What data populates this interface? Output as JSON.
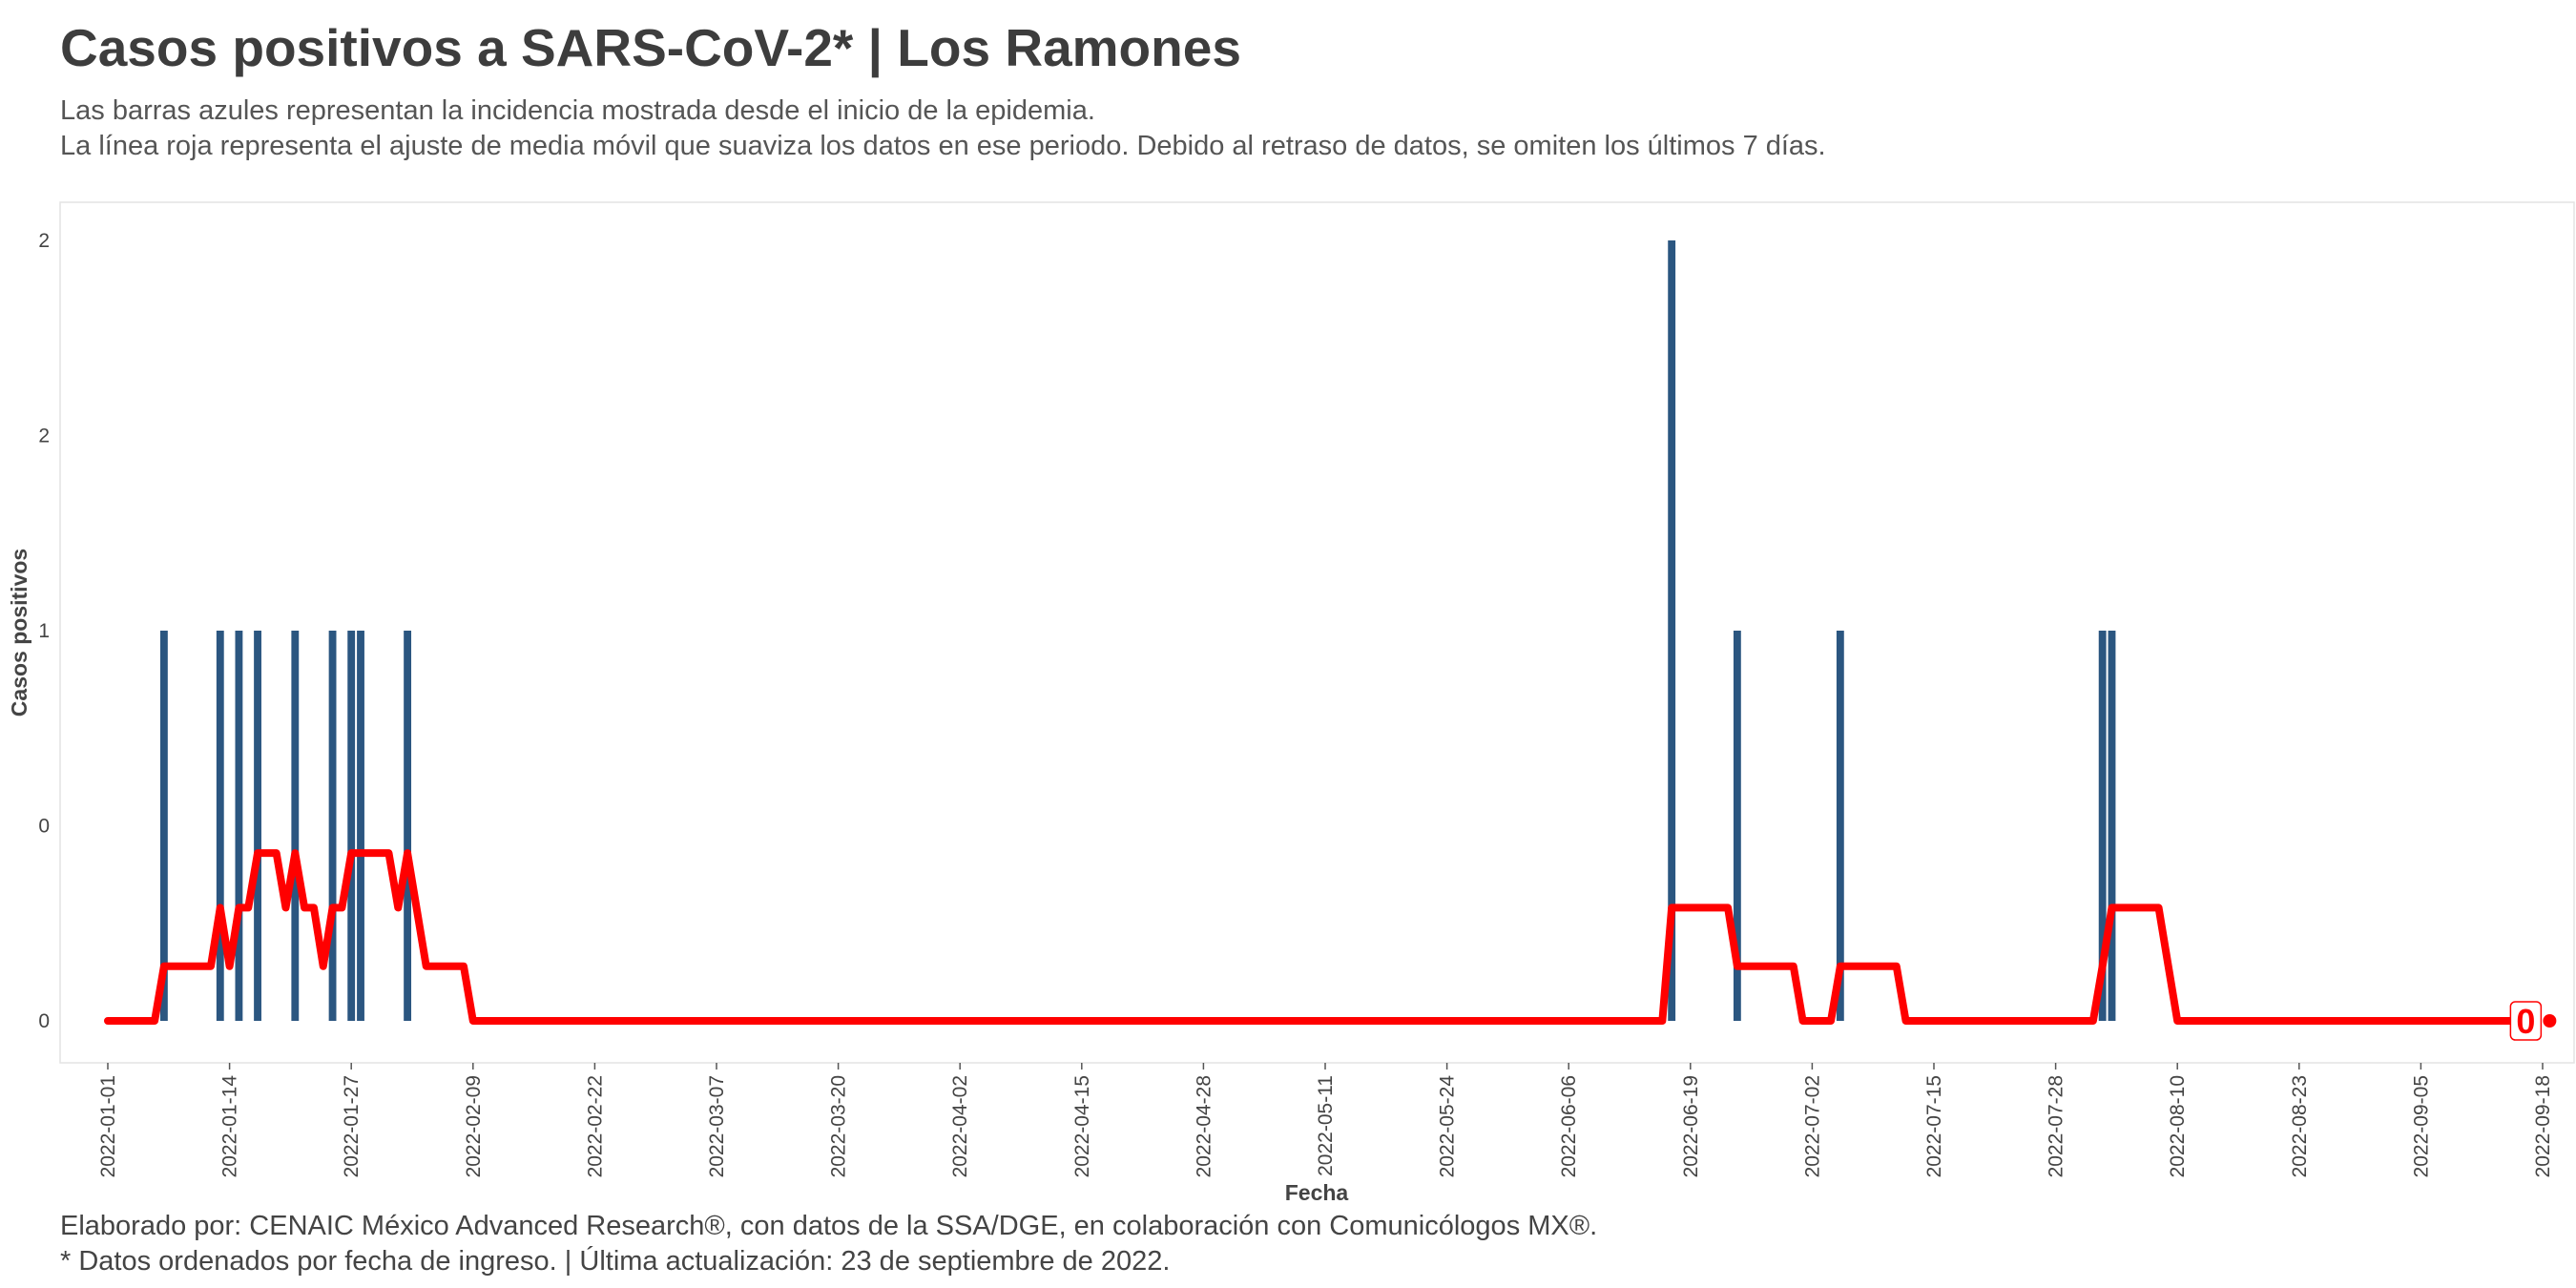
{
  "header": {
    "title": "Casos positivos a SARS-CoV-2* | Los Ramones",
    "subtitle_line1": "Las barras azules representan la incidencia mostrada desde el inicio de la epidemia.",
    "subtitle_line2": "La línea roja representa el ajuste de media móvil que suaviza los datos en ese periodo. Debido al retraso de datos, se omiten los últimos 7 días."
  },
  "footer": {
    "caption_line1": "Elaborado por: CENAIC México Advanced Research®, con datos de la SSA/DGE, en colaboración con Comunicólogos MX®.",
    "caption_line2": "* Datos ordenados por fecha de ingreso. | Última actualización: 23 de septiembre de 2022."
  },
  "colors": {
    "bar": "#2b5680",
    "line": "#ff0000",
    "panel_border": "#e3e3e3",
    "text": "#444444"
  },
  "chart_data": {
    "type": "bar",
    "xlabel": "Fecha",
    "ylabel": "Casos positivos",
    "x_range": [
      "2022-01-01",
      "2022-09-18"
    ],
    "ylim": [
      0,
      2
    ],
    "grid": false,
    "x_tick_labels": [
      "2022-01-01",
      "2022-01-14",
      "2022-01-27",
      "2022-02-09",
      "2022-02-22",
      "2022-03-07",
      "2022-03-20",
      "2022-04-02",
      "2022-04-15",
      "2022-04-28",
      "2022-05-11",
      "2022-05-24",
      "2022-06-06",
      "2022-06-19",
      "2022-07-02",
      "2022-07-15",
      "2022-07-28",
      "2022-08-10",
      "2022-08-23",
      "2022-09-05",
      "2022-09-18"
    ],
    "y_ticks": [
      {
        "value": 0,
        "label": "0"
      },
      {
        "value": 0.5,
        "label": "0"
      },
      {
        "value": 1,
        "label": "1"
      },
      {
        "value": 1.5,
        "label": "2"
      },
      {
        "value": 2,
        "label": "2"
      }
    ],
    "series": [
      {
        "kind": "bar",
        "points": [
          {
            "date": "2022-01-07",
            "value": 1
          },
          {
            "date": "2022-01-13",
            "value": 1
          },
          {
            "date": "2022-01-15",
            "value": 1
          },
          {
            "date": "2022-01-17",
            "value": 1
          },
          {
            "date": "2022-01-21",
            "value": 1
          },
          {
            "date": "2022-01-25",
            "value": 1
          },
          {
            "date": "2022-01-27",
            "value": 1
          },
          {
            "date": "2022-01-28",
            "value": 1
          },
          {
            "date": "2022-02-02",
            "value": 1
          },
          {
            "date": "2022-06-17",
            "value": 2
          },
          {
            "date": "2022-06-24",
            "value": 1
          },
          {
            "date": "2022-07-05",
            "value": 1
          },
          {
            "date": "2022-08-02",
            "value": 1
          },
          {
            "date": "2022-08-03",
            "value": 1
          }
        ]
      },
      {
        "kind": "line",
        "points": [
          {
            "date": "2022-01-01",
            "value": 0
          },
          {
            "date": "2022-01-06",
            "value": 0
          },
          {
            "date": "2022-01-07",
            "value": 0.14
          },
          {
            "date": "2022-01-12",
            "value": 0.14
          },
          {
            "date": "2022-01-13",
            "value": 0.29
          },
          {
            "date": "2022-01-14",
            "value": 0.14
          },
          {
            "date": "2022-01-15",
            "value": 0.29
          },
          {
            "date": "2022-01-16",
            "value": 0.29
          },
          {
            "date": "2022-01-17",
            "value": 0.43
          },
          {
            "date": "2022-01-19",
            "value": 0.43
          },
          {
            "date": "2022-01-20",
            "value": 0.29
          },
          {
            "date": "2022-01-21",
            "value": 0.43
          },
          {
            "date": "2022-01-22",
            "value": 0.29
          },
          {
            "date": "2022-01-23",
            "value": 0.29
          },
          {
            "date": "2022-01-24",
            "value": 0.14
          },
          {
            "date": "2022-01-25",
            "value": 0.29
          },
          {
            "date": "2022-01-26",
            "value": 0.29
          },
          {
            "date": "2022-01-27",
            "value": 0.43
          },
          {
            "date": "2022-01-31",
            "value": 0.43
          },
          {
            "date": "2022-02-01",
            "value": 0.29
          },
          {
            "date": "2022-02-02",
            "value": 0.43
          },
          {
            "date": "2022-02-04",
            "value": 0.14
          },
          {
            "date": "2022-02-08",
            "value": 0.14
          },
          {
            "date": "2022-02-09",
            "value": 0
          },
          {
            "date": "2022-06-16",
            "value": 0
          },
          {
            "date": "2022-06-17",
            "value": 0.29
          },
          {
            "date": "2022-06-23",
            "value": 0.29
          },
          {
            "date": "2022-06-24",
            "value": 0.14
          },
          {
            "date": "2022-06-30",
            "value": 0.14
          },
          {
            "date": "2022-07-01",
            "value": 0
          },
          {
            "date": "2022-07-04",
            "value": 0
          },
          {
            "date": "2022-07-05",
            "value": 0.14
          },
          {
            "date": "2022-07-11",
            "value": 0.14
          },
          {
            "date": "2022-07-12",
            "value": 0
          },
          {
            "date": "2022-08-01",
            "value": 0
          },
          {
            "date": "2022-08-02",
            "value": 0.14
          },
          {
            "date": "2022-08-03",
            "value": 0.29
          },
          {
            "date": "2022-08-08",
            "value": 0.29
          },
          {
            "date": "2022-08-10",
            "value": 0
          },
          {
            "date": "2022-09-16",
            "value": 0
          }
        ]
      }
    ],
    "end_label": "0"
  }
}
